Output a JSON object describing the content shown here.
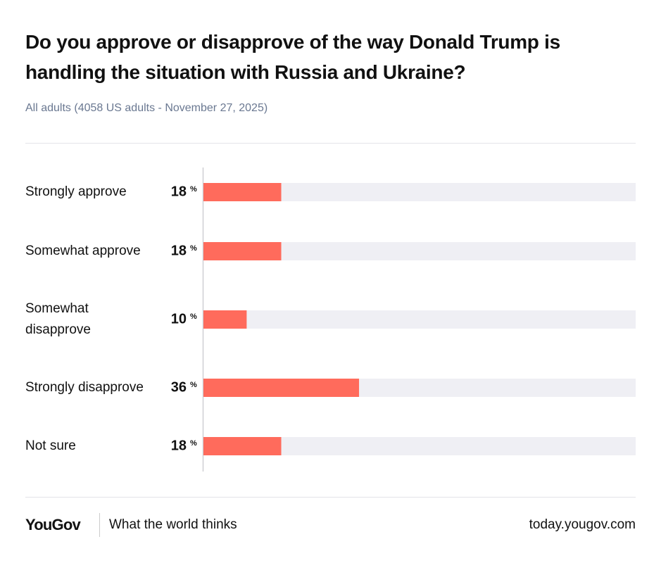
{
  "chart_data": {
    "type": "bar",
    "orientation": "horizontal",
    "title": "Do you approve or disapprove of the way Donald Trump is handling the situation with Russia and Ukraine?",
    "subtitle": "All adults (4058 US adults - November 27, 2025)",
    "categories": [
      "Strongly approve",
      "Somewhat approve",
      "Somewhat disapprove",
      "Strongly disapprove",
      "Not sure"
    ],
    "values": [
      18,
      18,
      10,
      36,
      18
    ],
    "unit": "%",
    "color": "#ff6b5c",
    "track_color": "#efeff4",
    "xlim": [
      0,
      100
    ]
  },
  "footer": {
    "brand": "YouGov",
    "tagline": "What the world thinks",
    "site": "today.yougov.com"
  }
}
